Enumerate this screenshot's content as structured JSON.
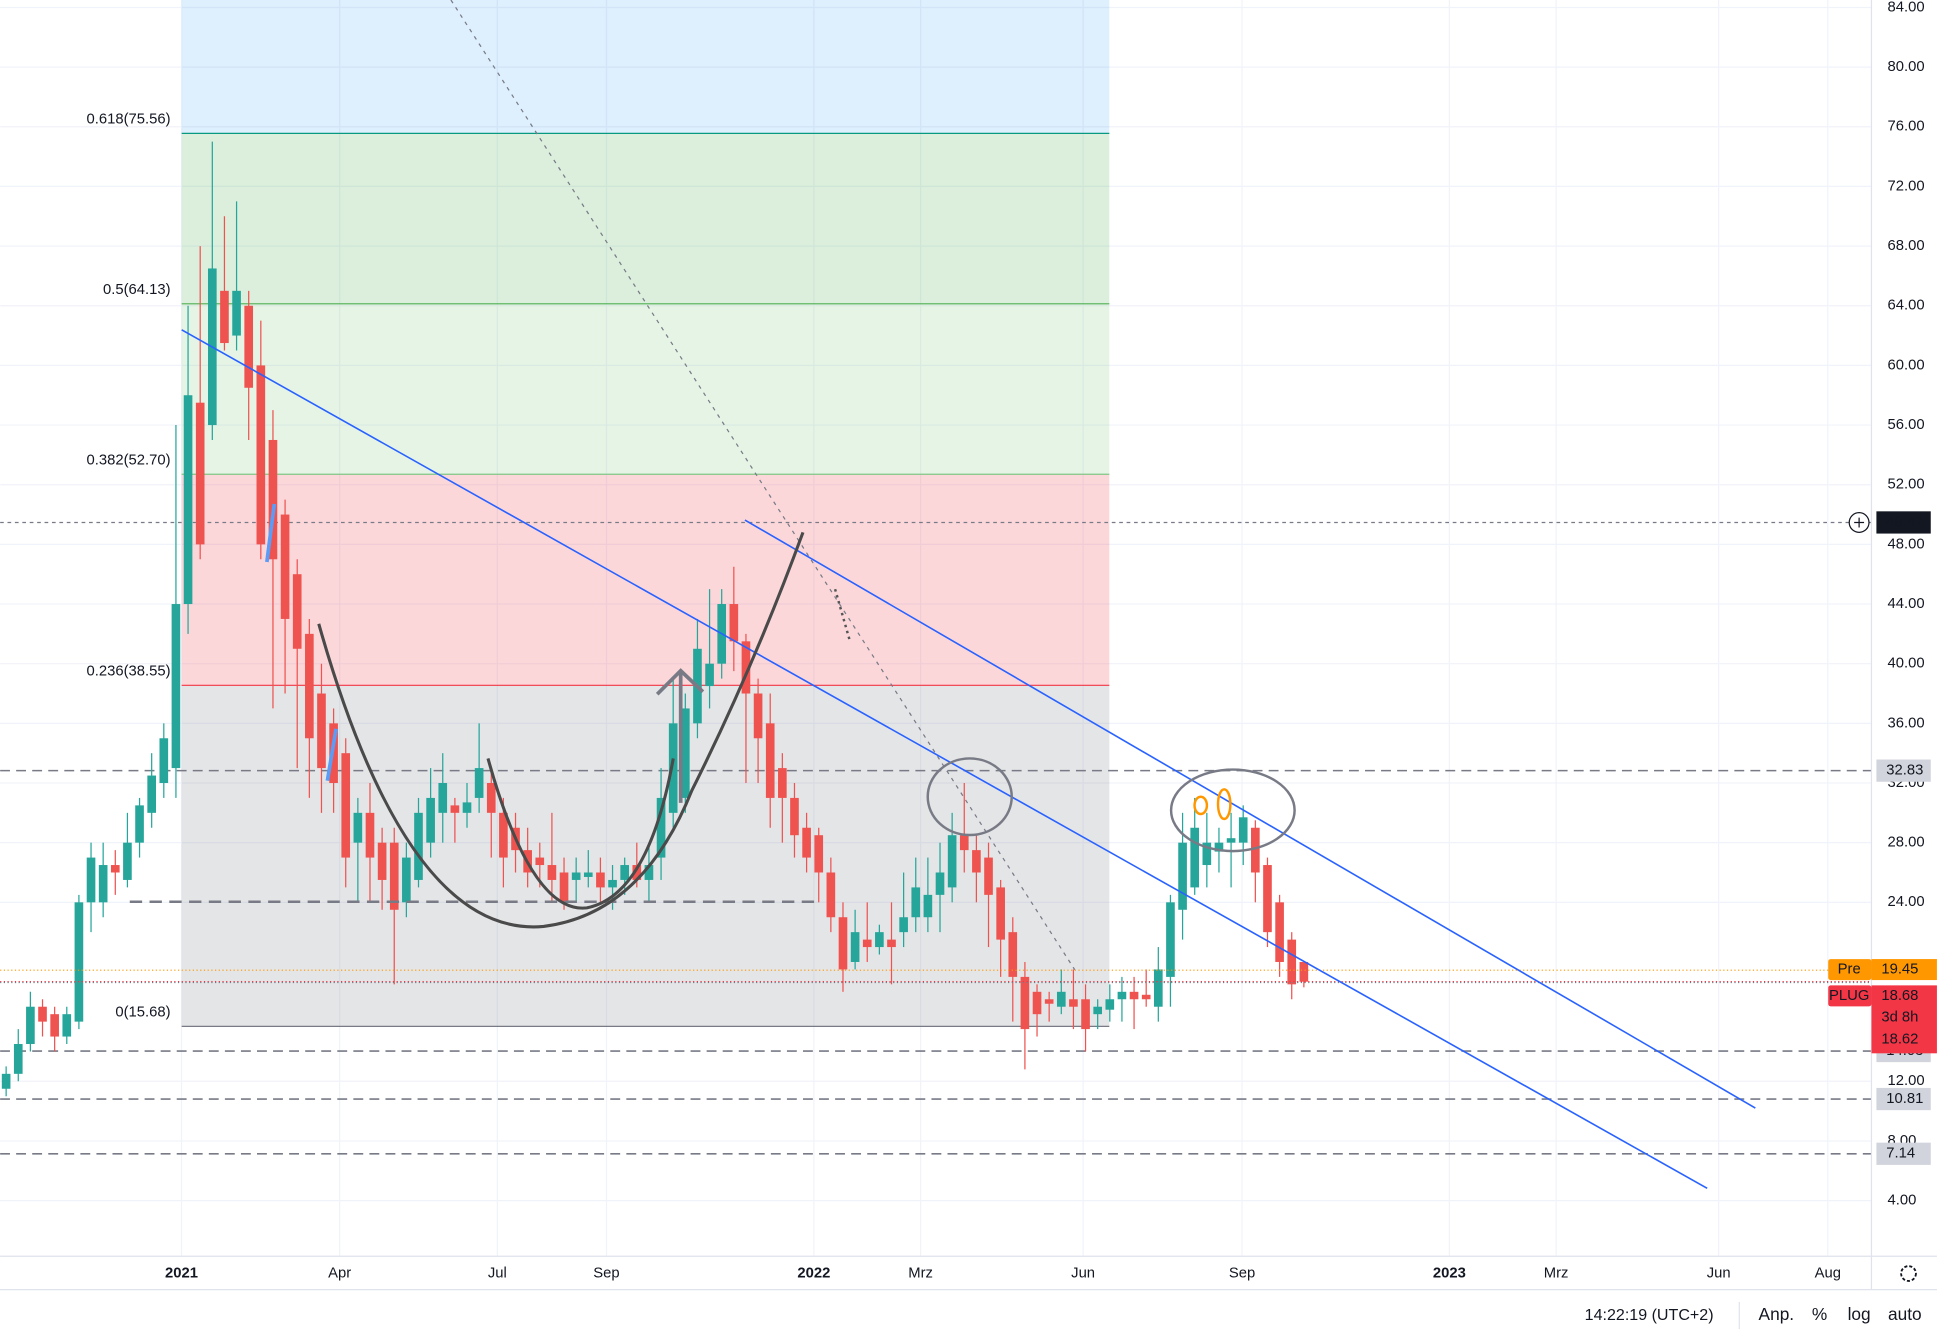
{
  "chart_data": {
    "type": "candlestick",
    "up_color": "#26a69a",
    "down_color": "#ef5350",
    "open": [
      11.5,
      12.5,
      14.5,
      17,
      16.5,
      15,
      16,
      24,
      24,
      26.5,
      25.5,
      28,
      30,
      32,
      33,
      44,
      57.5,
      56,
      65,
      62,
      64,
      60,
      55,
      50,
      46,
      42,
      38,
      36,
      34,
      28,
      30,
      28,
      28,
      24,
      25.5,
      28,
      30,
      30.5,
      30,
      31,
      32,
      30,
      29,
      27.5,
      27,
      26.5,
      26,
      25.5,
      25.7,
      26,
      25,
      25.5,
      26.5,
      25.5,
      27,
      30,
      31,
      36,
      38.5,
      40,
      44,
      41.5,
      38,
      36,
      33,
      31,
      29,
      28.5,
      26,
      23,
      20,
      21.5,
      21,
      21.5,
      22,
      23,
      23,
      24.5,
      25,
      28.5,
      27.5,
      27,
      25,
      22,
      19,
      18,
      17.5,
      17,
      17.5,
      17.5,
      16.5,
      16.8,
      17.5,
      18,
      17.8,
      17,
      19,
      23.5,
      25,
      26.5,
      27.4,
      28,
      28,
      29,
      26.5,
      24,
      21.5,
      20
    ],
    "high": [
      13,
      15.5,
      18,
      17.5,
      17,
      17,
      24.5,
      28,
      28,
      27.5,
      30,
      31,
      34,
      36,
      56,
      64,
      68,
      75,
      70,
      71,
      65,
      63,
      57,
      51,
      47,
      43,
      40,
      37,
      35,
      31,
      32,
      29,
      29,
      28,
      31,
      33,
      34,
      31,
      32,
      36,
      33,
      31,
      30,
      29,
      28,
      30,
      27,
      27,
      27.5,
      27,
      26.5,
      27,
      28,
      28,
      33,
      39,
      38,
      43,
      45,
      45,
      46.5,
      42,
      39,
      38,
      34,
      32,
      30,
      29,
      27,
      24,
      23.5,
      24,
      22.5,
      24,
      26,
      27,
      27,
      28,
      30,
      32,
      28.5,
      28,
      25.5,
      23,
      20,
      18.5,
      18,
      19.5,
      19.5,
      18.5,
      17.5,
      18.5,
      19,
      19,
      19.5,
      21,
      24.5,
      30,
      31,
      30,
      29,
      30,
      30.5,
      29.5,
      27,
      24.5,
      22,
      20
    ],
    "low": [
      11,
      12,
      14,
      15,
      14,
      14.5,
      15.5,
      22,
      23,
      24.5,
      25,
      27,
      29,
      31,
      31,
      42,
      47,
      55,
      61,
      61,
      55,
      47,
      37,
      38,
      33,
      31,
      30,
      30,
      25,
      24,
      24,
      23.5,
      18.5,
      23,
      25,
      27,
      28,
      28,
      29,
      30,
      27,
      25,
      26,
      25,
      25,
      24,
      23.5,
      24,
      25,
      24,
      23.5,
      24.5,
      25,
      24,
      25.5,
      29,
      30,
      35,
      37,
      39,
      39.5,
      32,
      32,
      29,
      28,
      27,
      26,
      24,
      22,
      18,
      19.5,
      20,
      20.5,
      18.5,
      21,
      22,
      22,
      22,
      24,
      26,
      24,
      21,
      19,
      16,
      12.8,
      15,
      16,
      16.5,
      15.5,
      14,
      15.5,
      16,
      16,
      15.5,
      17,
      16,
      17,
      21.5,
      24.5,
      25,
      26,
      25,
      26.5,
      24,
      21,
      19,
      17.5,
      18.3
    ],
    "close": [
      12.5,
      14.5,
      17,
      16,
      15,
      16.5,
      24,
      27,
      26.5,
      26,
      28,
      30.5,
      32.5,
      35,
      44,
      58,
      48,
      66.5,
      61.5,
      65,
      58.5,
      48,
      47,
      43,
      41,
      35,
      33,
      32,
      27,
      30,
      27,
      25.5,
      23.5,
      27,
      30,
      31,
      32,
      30,
      30.7,
      33,
      30,
      27,
      27.5,
      26,
      26.5,
      25.5,
      24,
      26,
      26,
      25,
      25.5,
      26.5,
      25.5,
      26.5,
      31,
      36,
      37,
      41,
      40,
      44,
      41.5,
      38,
      35,
      31,
      31,
      28.5,
      27,
      26,
      23,
      19.5,
      22,
      21,
      22,
      21,
      23,
      25,
      24.5,
      26,
      28.5,
      27.5,
      26,
      24.5,
      21.5,
      19,
      15.5,
      16.5,
      17.2,
      18,
      17,
      15.5,
      17,
      17.5,
      18,
      17.5,
      17.5,
      19.5,
      24,
      28,
      29,
      28,
      28,
      28.3,
      29.7,
      26,
      22,
      20,
      18.5,
      18.68
    ],
    "ylim": [
      0.27,
      84.5
    ],
    "xlim": [
      -0.5,
      153.8
    ],
    "yticks": [
      {
        "value": 84,
        "label": "84.00"
      },
      {
        "value": 80,
        "label": "80.00"
      },
      {
        "value": 76,
        "label": "76.00"
      },
      {
        "value": 72,
        "label": "72.00"
      },
      {
        "value": 68,
        "label": "68.00"
      },
      {
        "value": 64,
        "label": "64.00"
      },
      {
        "value": 60,
        "label": "60.00"
      },
      {
        "value": 56,
        "label": "56.00"
      },
      {
        "value": 52,
        "label": "52.00"
      },
      {
        "value": 48,
        "label": "48.00"
      },
      {
        "value": 44,
        "label": "44.00"
      },
      {
        "value": 40,
        "label": "40.00"
      },
      {
        "value": 36,
        "label": "36.00"
      },
      {
        "value": 32,
        "label": "32.00"
      },
      {
        "value": 28,
        "label": "28.00"
      },
      {
        "value": 24,
        "label": "24.00"
      },
      {
        "value": 12,
        "label": "12.00"
      },
      {
        "value": 8,
        "label": "8.00"
      },
      {
        "value": 4,
        "label": "4.00"
      }
    ],
    "xticks": [
      {
        "value": 14.46,
        "label": "2021"
      },
      {
        "value": 27.5,
        "label": "Apr"
      },
      {
        "value": 40.5,
        "label": "Jul"
      },
      {
        "value": 49.5,
        "label": "Sep"
      },
      {
        "value": 66.6,
        "label": "2022"
      },
      {
        "value": 75.4,
        "label": "Mrz"
      },
      {
        "value": 88.8,
        "label": "Jun"
      },
      {
        "value": 101.9,
        "label": "Sep"
      },
      {
        "value": 119,
        "label": "2023"
      },
      {
        "value": 127.8,
        "label": "Mrz"
      },
      {
        "value": 141.2,
        "label": "Jun"
      },
      {
        "value": 150.2,
        "label": "Aug"
      }
    ],
    "fib_levels": [
      {
        "value": 75.56,
        "label": "0.618(75.56)",
        "color": "#089981"
      },
      {
        "value": 64.13,
        "label": "0.5(64.13)",
        "color": "#4caf50"
      },
      {
        "value": 52.7,
        "label": "0.382(52.70)",
        "color": "#81c784"
      },
      {
        "value": 38.55,
        "label": "0.236(38.55)",
        "color": "#f23645"
      },
      {
        "value": 15.68,
        "label": "0(15.68)",
        "color": "#787b86"
      }
    ],
    "levels": [
      49.47,
      32.83,
      14.03,
      10.81,
      7.14
    ],
    "level_styles": [
      "dotted",
      "dashed",
      "dashed",
      "dashed",
      "dashed"
    ],
    "markers": [
      {
        "name": "Pre",
        "value": 19.45,
        "color": "#ff9800"
      },
      {
        "name": "PLUG",
        "value": 18.68,
        "color": "#f23645",
        "countdown": "3d 8h",
        "value2": 18.62
      }
    ],
    "status_bar": {
      "time": "14:22:19 (UTC+2)",
      "buttons": [
        "Anp.",
        "%",
        "log",
        "auto"
      ]
    }
  }
}
